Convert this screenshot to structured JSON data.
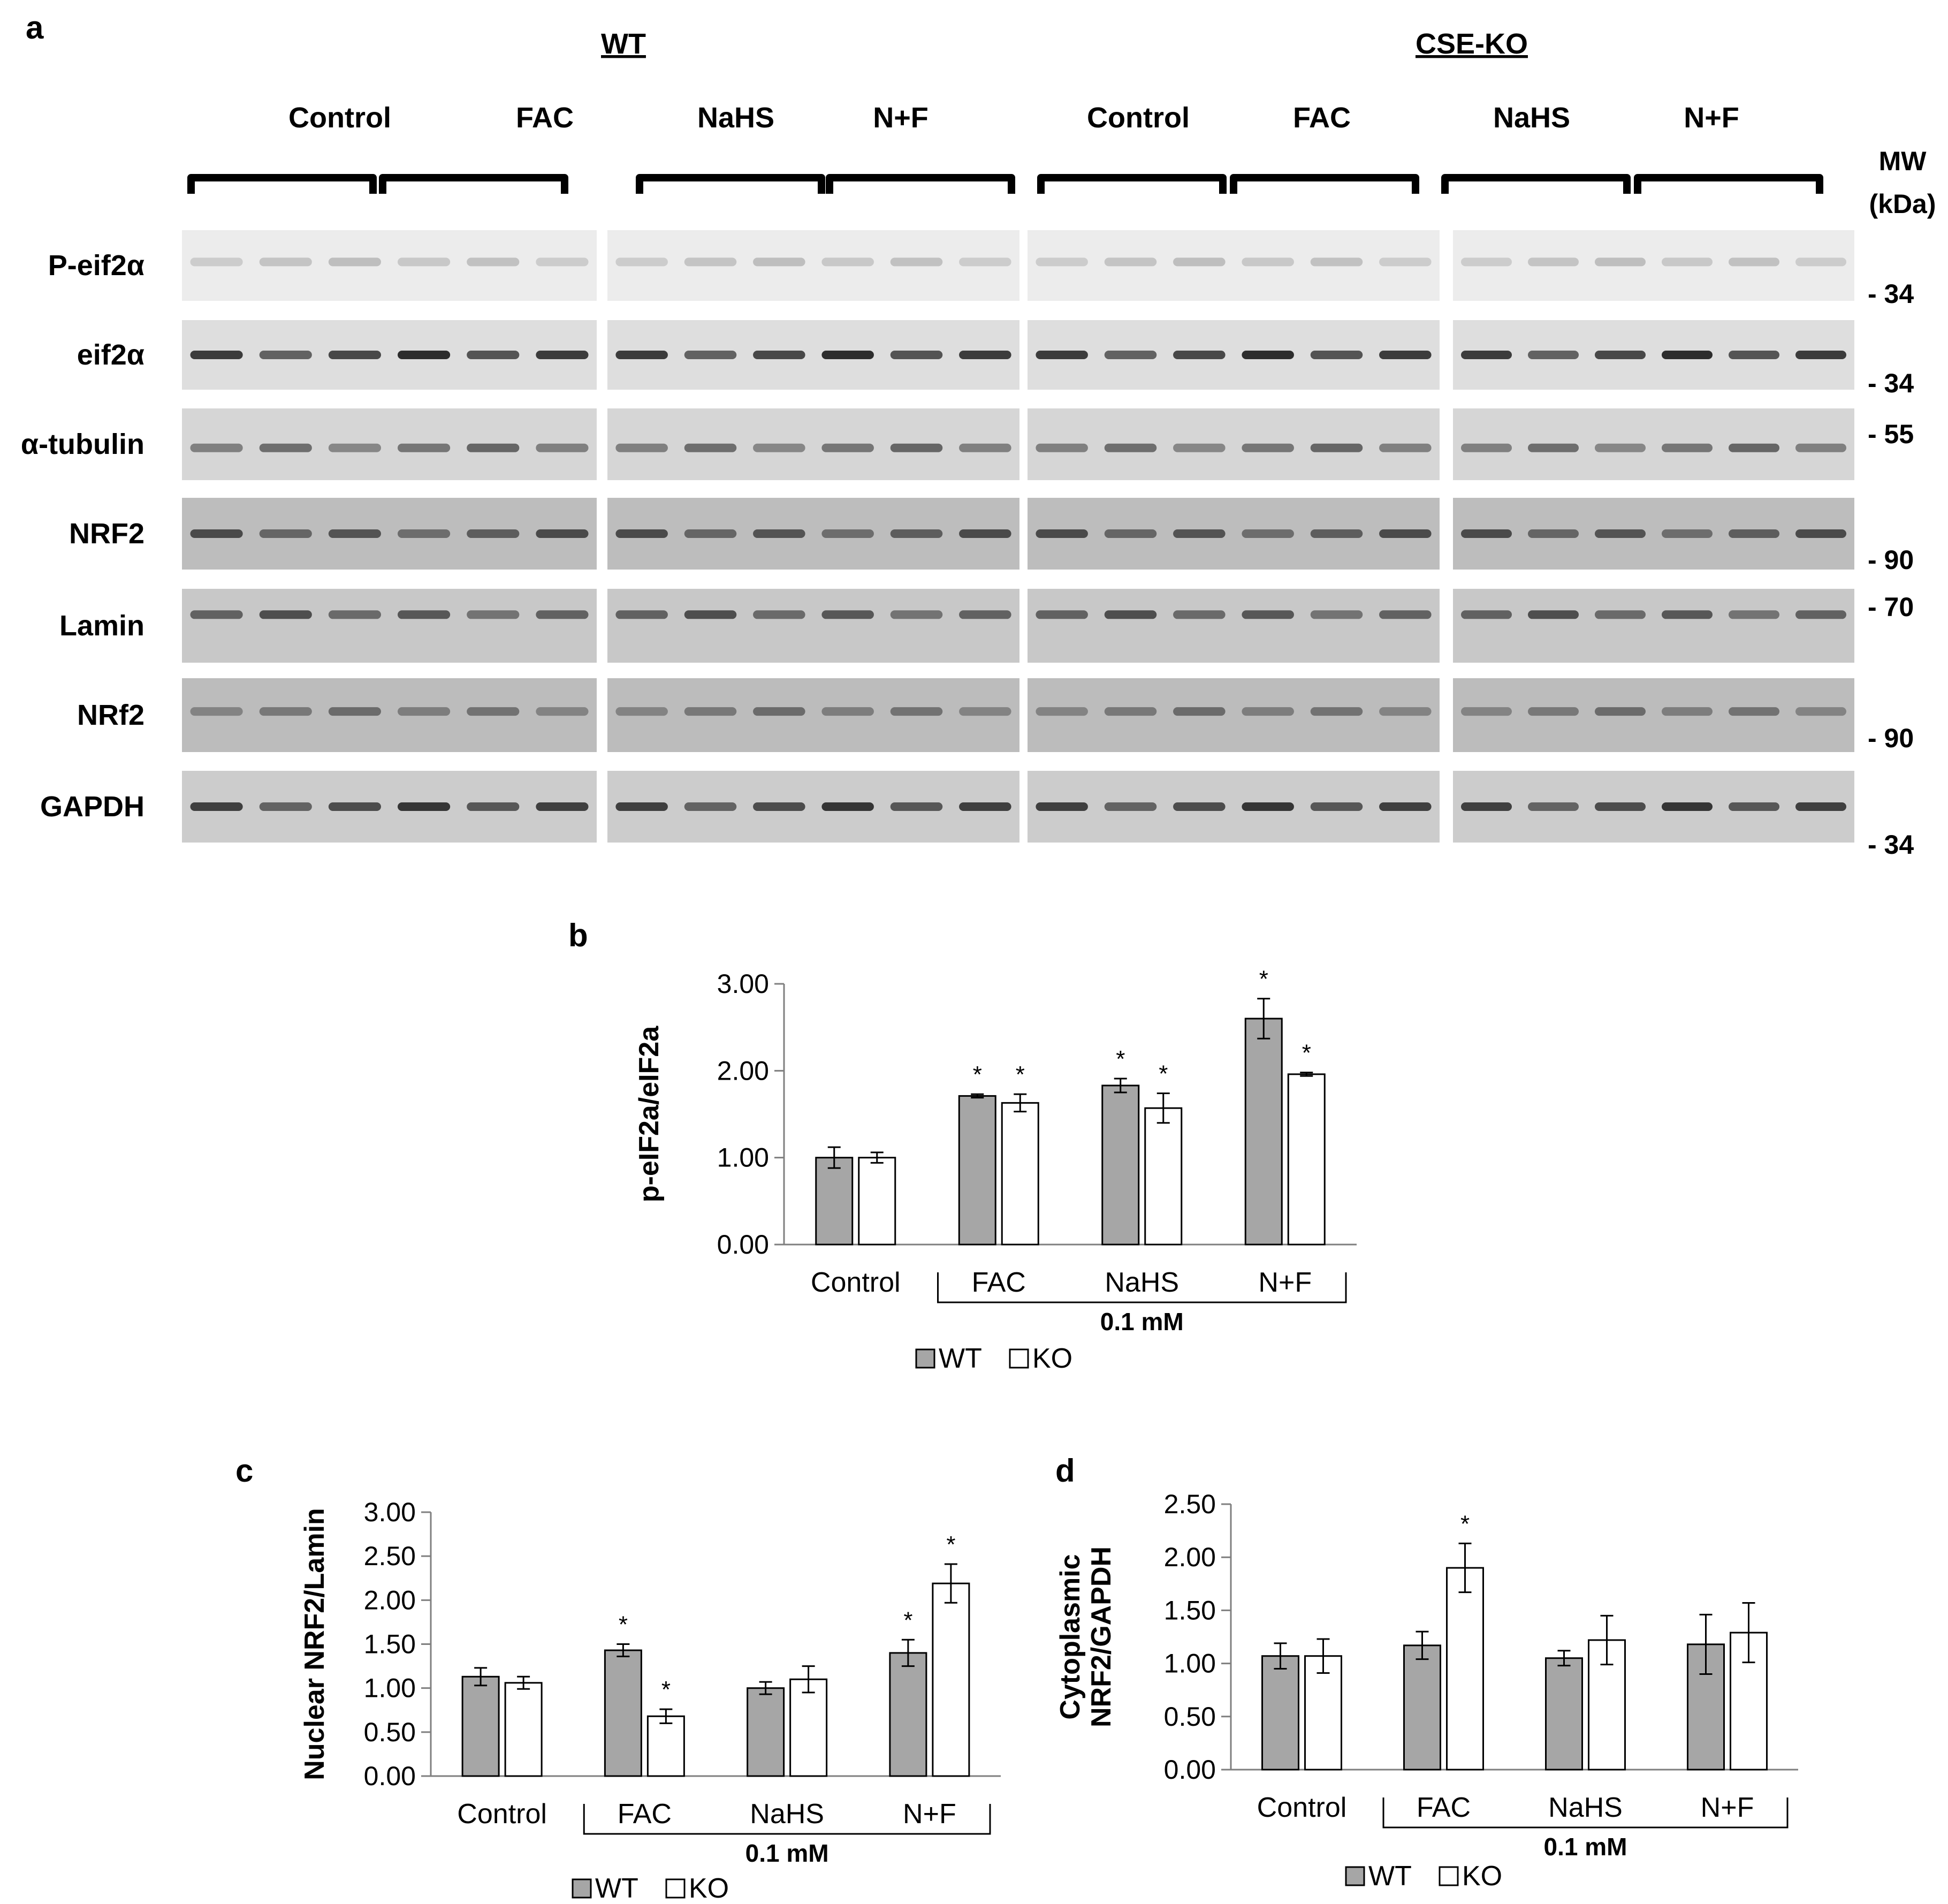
{
  "panel_labels": {
    "a": "a",
    "b": "b",
    "c": "c",
    "d": "d"
  },
  "blot": {
    "group_wt": "WT",
    "group_ko": "CSE-KO",
    "treatments": [
      "Control",
      "FAC",
      "NaHS",
      "N+F",
      "Control",
      "FAC",
      "NaHS",
      "N+F"
    ],
    "mw_header": [
      "MW",
      "(kDa)"
    ],
    "rows": [
      {
        "label": "P-eif2α",
        "mw": "- 34"
      },
      {
        "label": "eif2α",
        "mw": "- 34"
      },
      {
        "label": "α-tubulin",
        "mw": "- 55"
      },
      {
        "label": "NRF2",
        "mw": "- 90"
      },
      {
        "label": "Lamin",
        "mw": "- 70"
      },
      {
        "label": "NRf2",
        "mw": "- 90"
      },
      {
        "label": "GAPDH",
        "mw": "- 34"
      }
    ]
  },
  "chart_data": [
    {
      "type": "bar",
      "panel": "b",
      "ylabel": "p-eIF2a/eIF2a",
      "categories": [
        "Control",
        "FAC",
        "NaHS",
        "N+F"
      ],
      "bracket_label": "0.1 mM",
      "ylim": [
        0,
        3
      ],
      "yticks": [
        "0.00",
        "1.00",
        "2.00",
        "3.00"
      ],
      "series": [
        {
          "name": "WT",
          "color": "#a6a6a6",
          "values": [
            1.0,
            1.71,
            1.83,
            2.6
          ],
          "errors": [
            0.12,
            0.02,
            0.08,
            0.23
          ],
          "significant": [
            false,
            true,
            true,
            true
          ]
        },
        {
          "name": "KO",
          "color": "#ffffff",
          "values": [
            1.0,
            1.63,
            1.57,
            1.96
          ],
          "errors": [
            0.06,
            0.1,
            0.17,
            0.02
          ],
          "significant": [
            false,
            true,
            true,
            true
          ]
        }
      ],
      "significance_mark": "*",
      "legend": "bottom"
    },
    {
      "type": "bar",
      "panel": "c",
      "ylabel": "Nuclear NRF2/Lamin",
      "categories": [
        "Control",
        "FAC",
        "NaHS",
        "N+F"
      ],
      "bracket_label": "0.1 mM",
      "ylim": [
        0,
        3
      ],
      "yticks": [
        "0.00",
        "0.50",
        "1.00",
        "1.50",
        "2.00",
        "2.50",
        "3.00"
      ],
      "series": [
        {
          "name": "WT",
          "color": "#a6a6a6",
          "values": [
            1.13,
            1.43,
            1.0,
            1.4
          ],
          "errors": [
            0.1,
            0.07,
            0.07,
            0.15
          ],
          "significant": [
            false,
            true,
            false,
            true
          ]
        },
        {
          "name": "KO",
          "color": "#ffffff",
          "values": [
            1.06,
            0.68,
            1.1,
            2.19
          ],
          "errors": [
            0.07,
            0.08,
            0.15,
            0.22
          ],
          "significant": [
            false,
            true,
            false,
            true
          ]
        }
      ],
      "significance_mark": "*",
      "legend": "bottom"
    },
    {
      "type": "bar",
      "panel": "d",
      "ylabel": "Cytoplasmic NRF2/GAPDH",
      "categories": [
        "Control",
        "FAC",
        "NaHS",
        "N+F"
      ],
      "bracket_label": "0.1 mM",
      "ylim": [
        0,
        2.5
      ],
      "yticks": [
        "0.00",
        "0.50",
        "1.00",
        "1.50",
        "2.00",
        "2.50"
      ],
      "series": [
        {
          "name": "WT",
          "color": "#a6a6a6",
          "values": [
            1.07,
            1.17,
            1.05,
            1.18
          ],
          "errors": [
            0.12,
            0.13,
            0.07,
            0.28
          ],
          "significant": [
            false,
            false,
            false,
            false
          ]
        },
        {
          "name": "KO",
          "color": "#ffffff",
          "values": [
            1.07,
            1.9,
            1.22,
            1.29
          ],
          "errors": [
            0.16,
            0.23,
            0.23,
            0.28
          ],
          "significant": [
            false,
            true,
            false,
            false
          ]
        }
      ],
      "significance_mark": "*",
      "legend": "bottom"
    }
  ]
}
